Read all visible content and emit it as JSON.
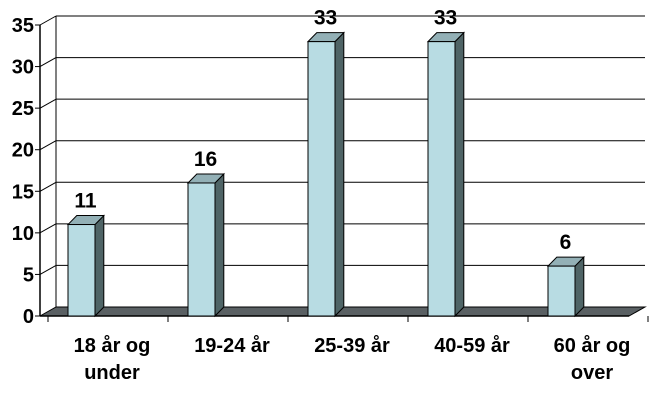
{
  "chart_data": {
    "type": "bar",
    "style": "3d-column",
    "categories": [
      "18 år og under",
      "19-24 år",
      "25-39 år",
      "40-59 år",
      "60 år og over"
    ],
    "category_lines": [
      [
        "18 år og",
        "under"
      ],
      [
        "19-24 år"
      ],
      [
        "25-39 år"
      ],
      [
        "40-59 år"
      ],
      [
        "60 år og",
        "over"
      ]
    ],
    "values": [
      11,
      16,
      33,
      33,
      6
    ],
    "data_labels": [
      "11",
      "16",
      "33",
      "33",
      "6"
    ],
    "ylim": [
      0,
      35
    ],
    "yticks": [
      0,
      5,
      10,
      15,
      20,
      25,
      30,
      35
    ],
    "ytick_labels": [
      "0",
      "5",
      "10",
      "15",
      "20",
      "25",
      "30",
      "35"
    ],
    "grid": true,
    "legend": "none",
    "colors": {
      "bar_front": "#B8DCE3",
      "bar_side": "#4F6466",
      "bar_top": "#93B0B6",
      "floor": "#5A6063",
      "grid": "#000000",
      "background": "#FFFFFF"
    }
  }
}
